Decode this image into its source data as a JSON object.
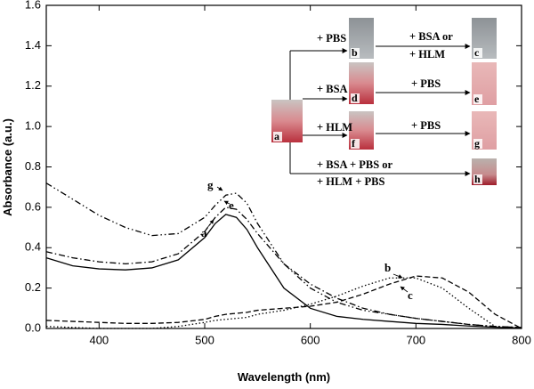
{
  "chart_data": {
    "type": "line",
    "xlabel": "Wavelength (nm)",
    "ylabel": "Absorbance (a.u.)",
    "x": [
      350,
      375,
      400,
      425,
      450,
      475,
      500,
      510,
      520,
      530,
      540,
      550,
      575,
      600,
      625,
      650,
      675,
      700,
      725,
      750,
      775,
      800
    ],
    "series": [
      {
        "name": "a",
        "color": "#000000",
        "style": "solid",
        "values": [
          0.35,
          0.31,
          0.295,
          0.29,
          0.3,
          0.34,
          0.45,
          0.52,
          0.565,
          0.55,
          0.49,
          0.4,
          0.2,
          0.1,
          0.06,
          0.045,
          0.035,
          0.025,
          0.02,
          0.012,
          0.006,
          0.002
        ]
      },
      {
        "name": "e",
        "color": "#000000",
        "style": "dashdot",
        "values": [
          0.38,
          0.35,
          0.33,
          0.32,
          0.33,
          0.37,
          0.48,
          0.55,
          0.6,
          0.59,
          0.54,
          0.47,
          0.32,
          0.22,
          0.15,
          0.1,
          0.07,
          0.05,
          0.035,
          0.02,
          0.01,
          0.005
        ]
      },
      {
        "name": "g",
        "color": "#000000",
        "style": "dashdotdot",
        "values": [
          0.72,
          0.64,
          0.56,
          0.5,
          0.46,
          0.47,
          0.55,
          0.61,
          0.66,
          0.67,
          0.62,
          0.52,
          0.32,
          0.2,
          0.13,
          0.09,
          0.07,
          0.05,
          0.035,
          0.02,
          0.01,
          0.005
        ]
      },
      {
        "name": "b",
        "color": "#000000",
        "style": "dashed",
        "values": [
          0.04,
          0.035,
          0.03,
          0.025,
          0.025,
          0.03,
          0.045,
          0.06,
          0.07,
          0.075,
          0.08,
          0.09,
          0.1,
          0.11,
          0.13,
          0.17,
          0.22,
          0.26,
          0.25,
          0.18,
          0.07,
          0.0
        ]
      },
      {
        "name": "c",
        "color": "#000000",
        "style": "dotted",
        "values": [
          0.01,
          0.005,
          0.0,
          0.0,
          0.0,
          0.01,
          0.03,
          0.04,
          0.045,
          0.05,
          0.055,
          0.07,
          0.09,
          0.12,
          0.16,
          0.21,
          0.25,
          0.25,
          0.2,
          0.1,
          0.01,
          0.0
        ]
      }
    ],
    "xlim": [
      350,
      800
    ],
    "xticks": [
      400,
      500,
      600,
      700,
      800
    ],
    "ylim": [
      0,
      1.6
    ],
    "yticks": [
      {
        "value": 0,
        "label": "0.0"
      },
      0.2,
      0.4,
      0.6,
      0.8,
      {
        "value": 1,
        "label": "1.0"
      },
      1.2,
      1.4,
      1.6
    ],
    "grid": false,
    "inset": {
      "tubes": [
        "a",
        "b",
        "c",
        "d",
        "e",
        "f",
        "g",
        "h"
      ],
      "steps": [
        [
          "+ PBS"
        ],
        [
          "+ BSA or",
          "+ HLM"
        ],
        [
          "+ BSA"
        ],
        [
          "+ PBS"
        ],
        [
          "+ HLM"
        ],
        [
          "+ PBS"
        ],
        [
          "+ BSA + PBS or",
          "+ HLM + PBS"
        ]
      ]
    }
  }
}
